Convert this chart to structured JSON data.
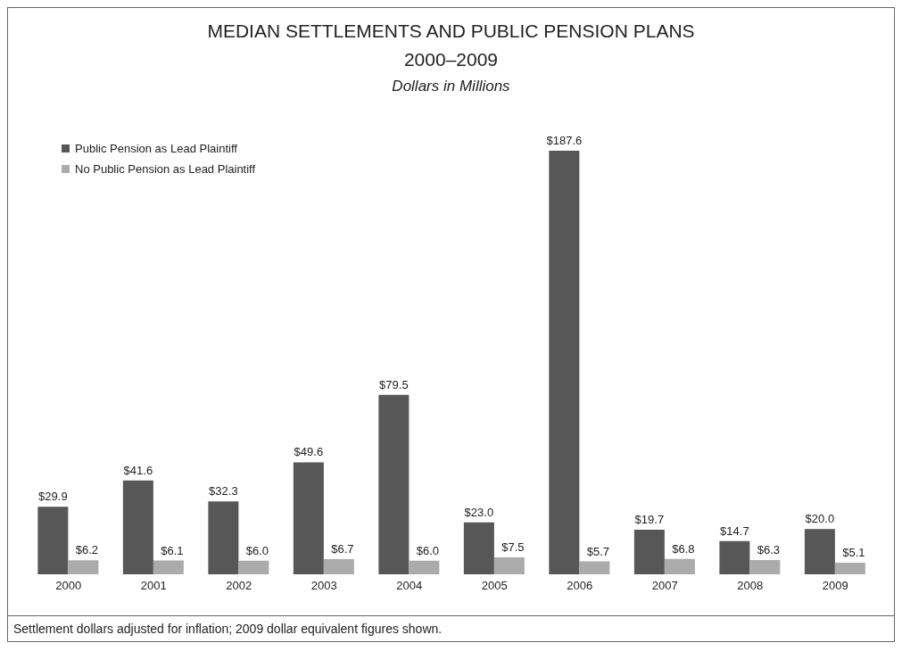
{
  "chart_data": {
    "type": "bar",
    "title": "MEDIAN SETTLEMENTS AND PUBLIC PENSION PLANS\n2000–2009",
    "subtitle": "Dollars in Millions",
    "categories": [
      "2000",
      "2001",
      "2002",
      "2003",
      "2004",
      "2005",
      "2006",
      "2007",
      "2008",
      "2009"
    ],
    "series": [
      {
        "name": "Public Pension as Lead Plaintiff",
        "color": "#575757",
        "values": [
          29.9,
          41.6,
          32.3,
          49.6,
          79.5,
          23.0,
          187.6,
          19.7,
          14.7,
          20.0
        ],
        "value_labels": [
          "$29.9",
          "$41.6",
          "$32.3",
          "$49.6",
          "$79.5",
          "$23.0",
          "$187.6",
          "$19.7",
          "$14.7",
          "$20.0"
        ]
      },
      {
        "name": "No Public Pension as Lead Plaintiff",
        "color": "#ababab",
        "values": [
          6.2,
          6.1,
          6.0,
          6.7,
          6.0,
          7.5,
          5.7,
          6.8,
          6.3,
          5.1
        ],
        "value_labels": [
          "$6.2",
          "$6.1",
          "$6.0",
          "$6.7",
          "$6.0",
          "$7.5",
          "$5.7",
          "$6.8",
          "$6.3",
          "$5.1"
        ]
      }
    ],
    "legend": "top left",
    "grid": false,
    "annotations": [
      "Settlement dollars adjusted for inflation; 2009 dollar equivalent figures shown."
    ]
  }
}
